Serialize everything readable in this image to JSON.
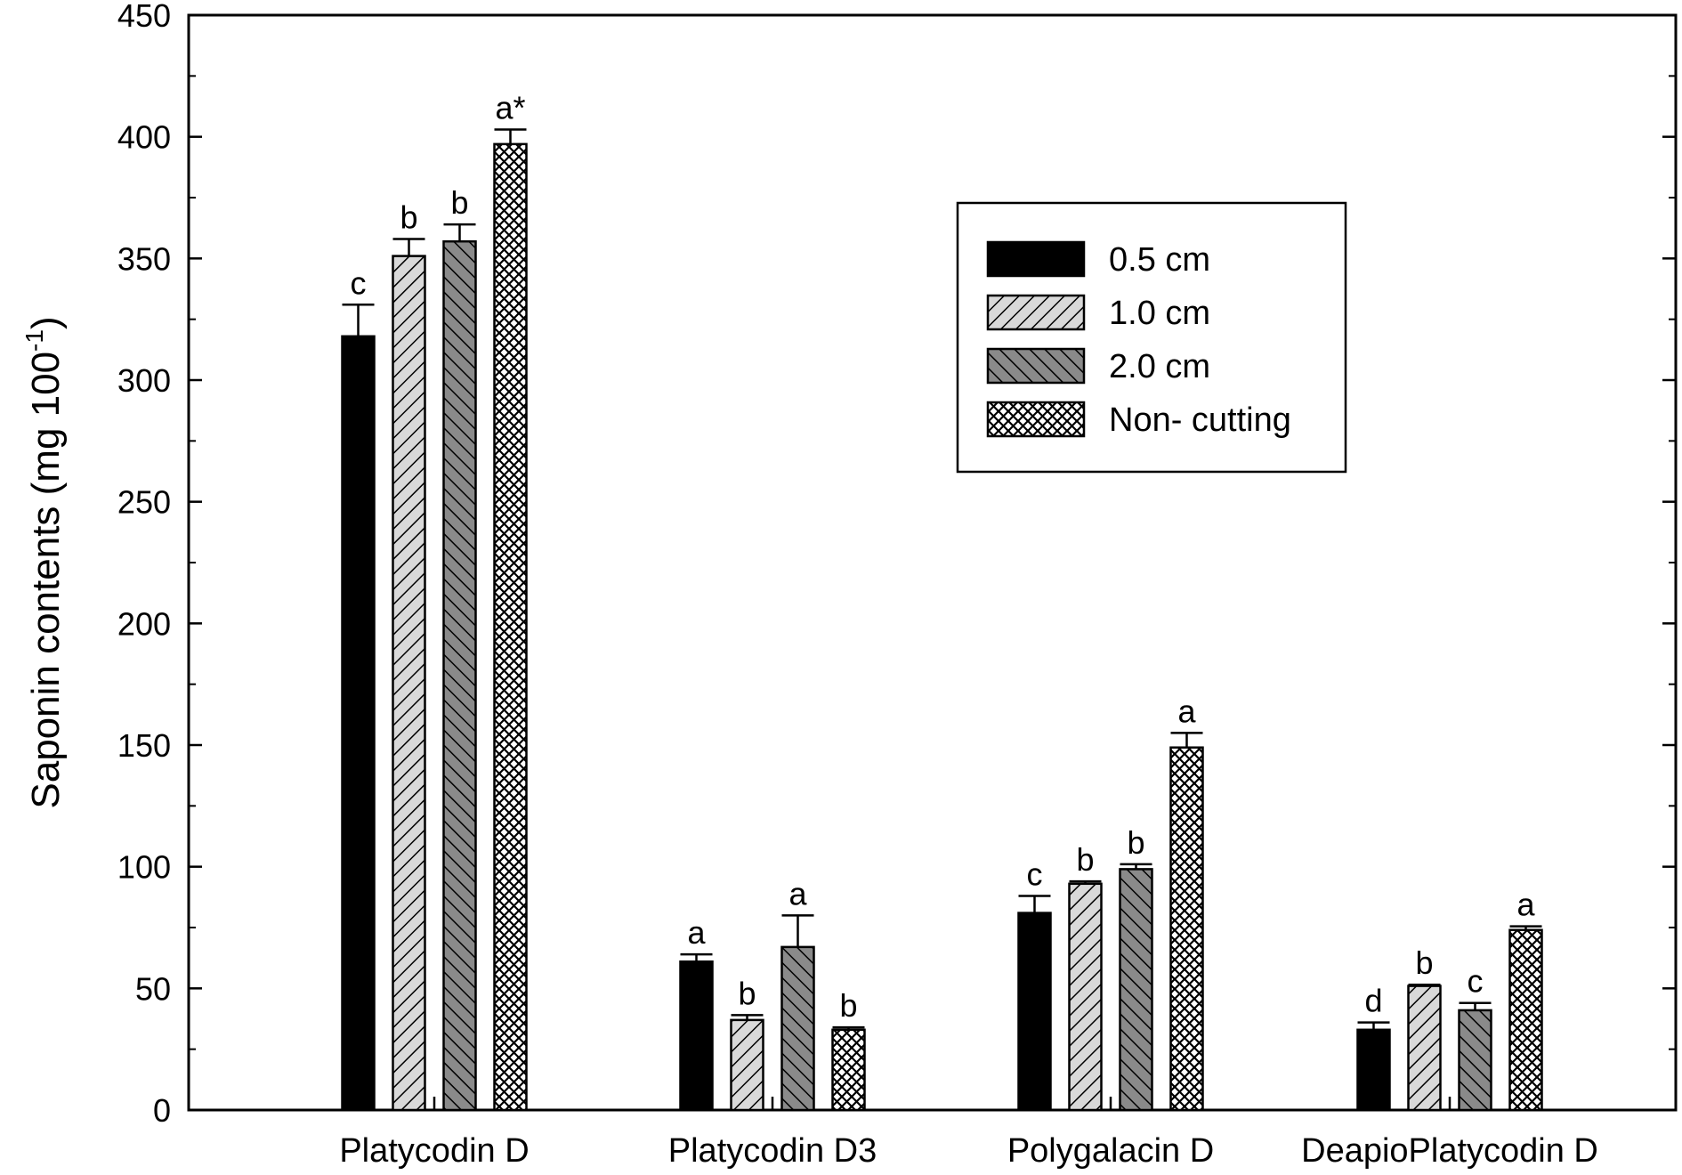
{
  "chart_data": {
    "type": "bar",
    "ylabel": "Saponin contents (mg 100",
    "ylabel_sup": "-1",
    "ylabel_suffix": ")",
    "ylim": [
      0,
      450
    ],
    "yticks": [
      0,
      50,
      100,
      150,
      200,
      250,
      300,
      350,
      400,
      450
    ],
    "categories": [
      "Platycodin D",
      "Platycodin D3",
      "Polygalacin D",
      "DeapioPlatycodin D"
    ],
    "legend_position": "top-right",
    "series": [
      {
        "name": "0.5 cm",
        "pattern": "solid-black",
        "values": [
          318,
          61,
          81,
          33
        ],
        "errors": [
          13,
          3,
          7,
          3
        ],
        "labels": [
          "c",
          "a",
          "c",
          "d"
        ]
      },
      {
        "name": "1.0 cm",
        "pattern": "light-diagonal",
        "values": [
          351,
          37,
          93,
          51
        ],
        "errors": [
          7,
          2,
          1,
          0.5
        ],
        "labels": [
          "b",
          "b",
          "b",
          "b"
        ]
      },
      {
        "name": "2.0 cm",
        "pattern": "dark-diagonal",
        "values": [
          357,
          67,
          99,
          41
        ],
        "errors": [
          7,
          13,
          2,
          3
        ],
        "labels": [
          "b",
          "a",
          "b",
          "c"
        ]
      },
      {
        "name": "Non- cutting",
        "pattern": "crosshatch",
        "values": [
          397,
          33,
          149,
          74
        ],
        "errors": [
          6,
          1,
          6,
          1.5
        ],
        "labels": [
          "a*",
          "b",
          "a",
          "a"
        ]
      }
    ]
  }
}
